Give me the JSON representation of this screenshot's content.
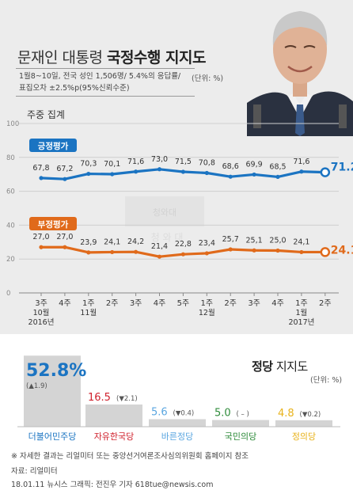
{
  "header": {
    "title_plain": "문재인 대통령 ",
    "title_bold": "국정수행 지지도",
    "desc_line1": "1월8~10일, 전국 성인 1,506명/ 5.4%의 응답률/",
    "desc_line2": "표집오차 ±2.5%p(95%신뢰수준)",
    "unit": "(단위: %)",
    "caption": "주중 집계"
  },
  "watermark": {
    "emblem_text": "청와대",
    "bottom_text": "청 와 대"
  },
  "colors": {
    "positive": "#1b74c2",
    "negative": "#e06a1b",
    "grid": "#cfcfcf",
    "axis": "#888888"
  },
  "chart_data": [
    {
      "type": "line",
      "x": [
        "3주",
        "4주",
        "1주",
        "2주",
        "3주",
        "4주",
        "5주",
        "1주",
        "2주",
        "3주",
        "4주",
        "1주",
        "2주"
      ],
      "x_group_labels": [
        {
          "index": 0,
          "lines": [
            "10월",
            "2016년"
          ]
        },
        {
          "index": 2,
          "lines": [
            "11월"
          ]
        },
        {
          "index": 7,
          "lines": [
            "12월"
          ]
        },
        {
          "index": 11,
          "lines": [
            "1월",
            "2017년"
          ]
        }
      ],
      "ylim": [
        0,
        100
      ],
      "yticks": [
        0,
        20,
        40,
        60,
        80,
        100
      ],
      "grid": true,
      "series": [
        {
          "name": "긍정평가",
          "values": [
            67.8,
            67.2,
            70.3,
            70.1,
            71.6,
            73.0,
            71.5,
            70.8,
            68.6,
            69.9,
            68.5,
            71.6,
            71.2
          ],
          "labels": [
            "67,8",
            "67,2",
            "70,3",
            "70,1",
            "71,6",
            "73,0",
            "71,5",
            "70,8",
            "68,6",
            "69,9",
            "68,5",
            "71,6",
            "71.2%"
          ]
        },
        {
          "name": "부정평가",
          "values": [
            27.0,
            27.0,
            23.9,
            24.1,
            24.2,
            21.4,
            22.8,
            23.4,
            25.7,
            25.1,
            25.0,
            24.1,
            24.1
          ],
          "labels": [
            "27,0",
            "27,0",
            "23,9",
            "24,1",
            "24,2",
            "21,4",
            "22,8",
            "23,4",
            "25,7",
            "25,1",
            "25,0",
            "24,1",
            "24.1%"
          ]
        }
      ]
    },
    {
      "type": "bar",
      "title_prefix": "정당",
      "title_suffix": " 지지도",
      "unit": "(단위: %)",
      "categories": [
        "더불어민주당",
        "자유한국당",
        "바른정당",
        "국민의당",
        "정의당"
      ],
      "values": [
        52.8,
        16.5,
        5.6,
        5.0,
        4.8
      ],
      "value_labels": [
        "52.8%",
        "16.5",
        "5.6",
        "5.0",
        "4.8"
      ],
      "change_labels": [
        "(▲1.9)",
        "(▼2.1)",
        "(▼0.4)",
        "( – )",
        "(▼0.2)"
      ],
      "colors": [
        "#1b74c2",
        "#d0222e",
        "#5aa6e0",
        "#2e8b3a",
        "#e8b21a"
      ]
    }
  ],
  "footer": {
    "note": "※ 자세한 결과는 리얼미터 또는 중앙선거여론조사심의위원회 홈페이지 참조",
    "source": "자료: 리얼미터",
    "credit": "18.01.11  뉴시스 그래픽: 전진우 기자 618tue@newsis.com"
  }
}
